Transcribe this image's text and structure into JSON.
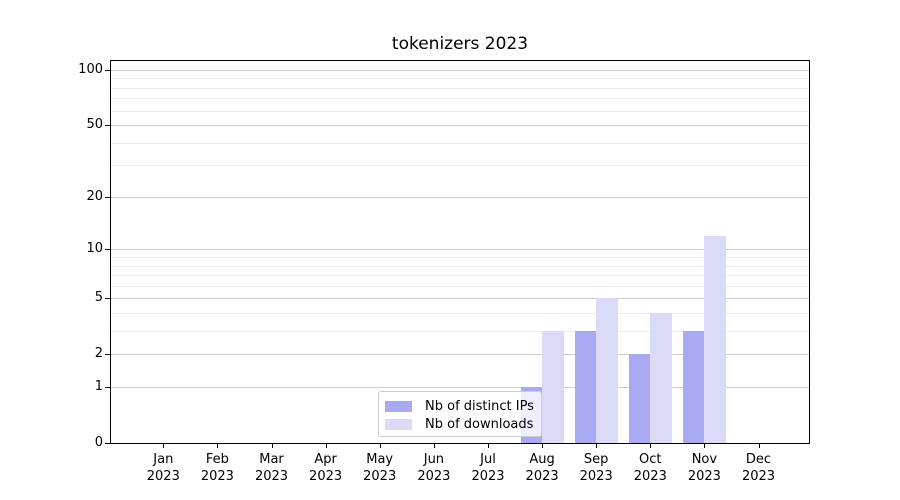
{
  "chart_data": {
    "type": "bar",
    "title": "tokenizers 2023",
    "x_labels": [
      {
        "month": "Jan",
        "year": "2023"
      },
      {
        "month": "Feb",
        "year": "2023"
      },
      {
        "month": "Mar",
        "year": "2023"
      },
      {
        "month": "Apr",
        "year": "2023"
      },
      {
        "month": "May",
        "year": "2023"
      },
      {
        "month": "Jun",
        "year": "2023"
      },
      {
        "month": "Jul",
        "year": "2023"
      },
      {
        "month": "Aug",
        "year": "2023"
      },
      {
        "month": "Sep",
        "year": "2023"
      },
      {
        "month": "Oct",
        "year": "2023"
      },
      {
        "month": "Nov",
        "year": "2023"
      },
      {
        "month": "Dec",
        "year": "2023"
      }
    ],
    "series": [
      {
        "name": "Nb of distinct IPs",
        "color": "#a9a9f2",
        "values": [
          0,
          0,
          0,
          0,
          0,
          0,
          0,
          1,
          3,
          2,
          3,
          0
        ]
      },
      {
        "name": "Nb of downloads",
        "color": "#dbdbf8",
        "values": [
          0,
          0,
          0,
          0,
          0,
          0,
          0,
          3,
          5,
          4,
          12,
          0
        ]
      }
    ],
    "y_scale": "symlog-ln(1+v)",
    "y_ticks": [
      0,
      1,
      2,
      5,
      10,
      20,
      50,
      100
    ],
    "y_minor_gridlines": [
      3,
      4,
      6,
      7,
      8,
      9,
      30,
      40,
      60,
      70,
      80,
      90
    ],
    "ylim": [
      0,
      113
    ],
    "grid": true,
    "legend_position": "lower center",
    "colors": {
      "axis": "#000000",
      "text": "#000000",
      "grid_major": "#cccccc",
      "grid_minor": "#ececec",
      "legend_border": "#cccccc"
    }
  }
}
